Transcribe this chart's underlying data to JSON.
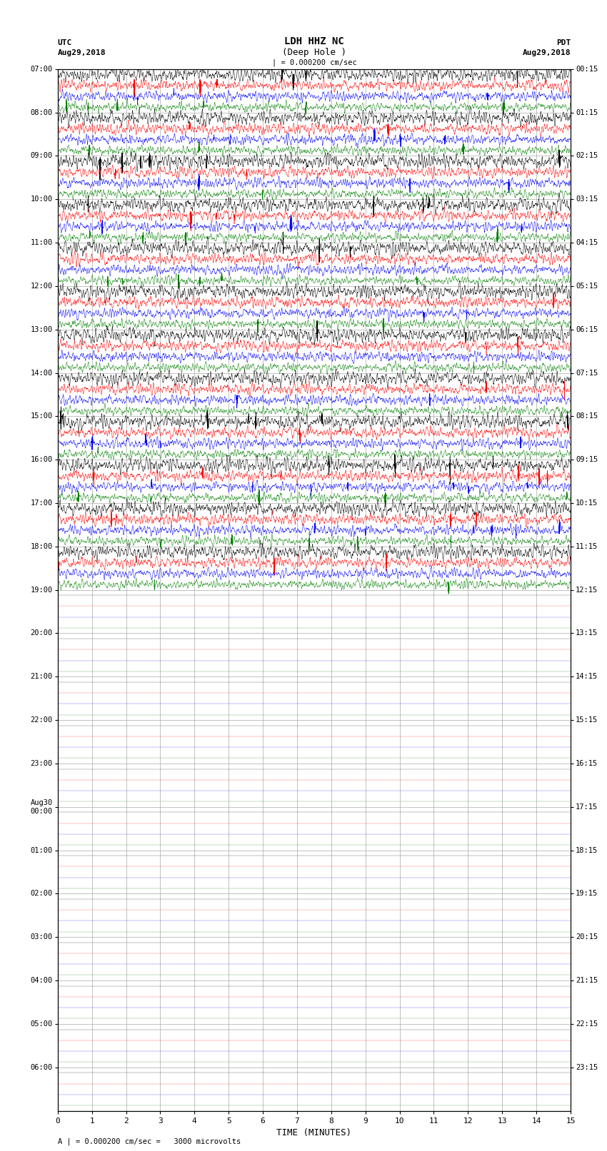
{
  "title_line1": "LDH HHZ NC",
  "title_line2": "(Deep Hole )",
  "scale_label": "| = 0.000200 cm/sec",
  "bottom_label": "A | = 0.000200 cm/sec =   3000 microvolts",
  "xlabel": "TIME (MINUTES)",
  "utc_header": "UTC",
  "utc_date": "Aug29,2018",
  "pdt_header": "PDT",
  "pdt_date": "Aug29,2018",
  "left_hour_labels": [
    "07:00",
    "08:00",
    "09:00",
    "10:00",
    "11:00",
    "12:00",
    "13:00",
    "14:00",
    "15:00",
    "16:00",
    "17:00",
    "18:00",
    "19:00",
    "20:00",
    "21:00",
    "22:00",
    "23:00",
    "Aug30\n00:00",
    "01:00",
    "02:00",
    "03:00",
    "04:00",
    "05:00",
    "06:00"
  ],
  "right_hour_labels": [
    "00:15",
    "01:15",
    "02:15",
    "03:15",
    "04:15",
    "05:15",
    "06:15",
    "07:15",
    "08:15",
    "09:15",
    "10:15",
    "11:15",
    "12:15",
    "13:15",
    "14:15",
    "15:15",
    "16:15",
    "17:15",
    "18:15",
    "19:15",
    "20:15",
    "21:15",
    "22:15",
    "23:15"
  ],
  "n_hours": 24,
  "traces_per_hour": 4,
  "active_hours": 12,
  "n_minutes": 15,
  "colors": [
    "black",
    "red",
    "blue",
    "green"
  ],
  "bg_color": "#ffffff",
  "grid_color": "#aaaaaa",
  "fig_width": 8.5,
  "fig_height": 16.13,
  "dpi": 100
}
